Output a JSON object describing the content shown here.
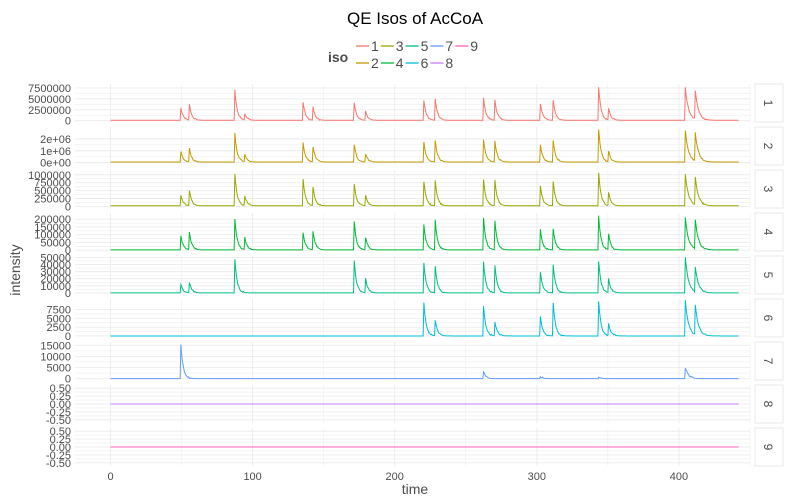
{
  "chart_data": {
    "type": "line",
    "title": "QE Isos of AcCoA",
    "xlabel": "time",
    "ylabel": "intensity",
    "xlim": [
      -25,
      450
    ],
    "x_ticks": [
      0,
      100,
      200,
      300,
      400
    ],
    "grid": true,
    "legend": {
      "title": "iso",
      "placement": "top",
      "entries": [
        {
          "label": "1",
          "color": "#F8766D"
        },
        {
          "label": "2",
          "color": "#C49A00"
        },
        {
          "label": "3",
          "color": "#99A800"
        },
        {
          "label": "4",
          "color": "#00BA38"
        },
        {
          "label": "5",
          "color": "#00BF7D"
        },
        {
          "label": "6",
          "color": "#00BCD8"
        },
        {
          "label": "7",
          "color": "#619CFF"
        },
        {
          "label": "8",
          "color": "#C77CFF"
        },
        {
          "label": "9",
          "color": "#FF61C3"
        }
      ]
    },
    "peak_times": [
      50,
      56,
      88,
      95,
      136,
      143,
      172,
      180,
      221,
      229,
      263,
      271,
      303,
      312,
      344,
      351,
      405,
      412
    ],
    "series": [
      {
        "name": "1",
        "strip": "1",
        "color": "#F8766D",
        "ylim": [
          -300000,
          8400000
        ],
        "y_tick_values": [
          0,
          2500000,
          5000000,
          7500000
        ],
        "y_tick_labels": [
          "0",
          "2500000",
          "5000000",
          "7500000"
        ],
        "baseline": 100000,
        "peaks": [
          [
            50,
            2800000
          ],
          [
            56,
            3500000
          ],
          [
            88,
            6900000
          ],
          [
            95,
            1500000
          ],
          [
            136,
            4200000
          ],
          [
            143,
            3000000
          ],
          [
            172,
            4100000
          ],
          [
            180,
            2000000
          ],
          [
            221,
            4600000
          ],
          [
            229,
            4800000
          ],
          [
            263,
            5100000
          ],
          [
            271,
            4700000
          ],
          [
            303,
            3900000
          ],
          [
            312,
            4700000
          ],
          [
            344,
            7700000
          ],
          [
            351,
            2800000
          ],
          [
            405,
            7500000
          ],
          [
            412,
            6500000
          ]
        ]
      },
      {
        "name": "2",
        "strip": "2",
        "color": "#C49A00",
        "ylim": [
          -200000,
          3000000
        ],
        "y_tick_values": [
          0,
          1000000,
          2000000
        ],
        "y_tick_labels": [
          "0e+00",
          "1e+06",
          "2e+06"
        ],
        "baseline": 50000,
        "peaks": [
          [
            50,
            900000
          ],
          [
            56,
            1100000
          ],
          [
            88,
            2400000
          ],
          [
            95,
            600000
          ],
          [
            136,
            1600000
          ],
          [
            143,
            1300000
          ],
          [
            172,
            1500000
          ],
          [
            180,
            700000
          ],
          [
            221,
            1700000
          ],
          [
            229,
            1800000
          ],
          [
            263,
            1900000
          ],
          [
            271,
            1800000
          ],
          [
            303,
            1400000
          ],
          [
            312,
            1800000
          ],
          [
            344,
            2800000
          ],
          [
            351,
            900000
          ],
          [
            405,
            2700000
          ],
          [
            412,
            2400000
          ]
        ]
      },
      {
        "name": "3",
        "strip": "3",
        "color": "#99A800",
        "ylim": [
          -50000,
          1150000
        ],
        "y_tick_values": [
          0,
          250000,
          500000,
          750000,
          1000000
        ],
        "y_tick_labels": [
          "0",
          "250000",
          "500000",
          "750000",
          "1000000"
        ],
        "baseline": 20000,
        "peaks": [
          [
            50,
            350000
          ],
          [
            56,
            480000
          ],
          [
            88,
            1000000
          ],
          [
            95,
            300000
          ],
          [
            136,
            850000
          ],
          [
            143,
            600000
          ],
          [
            172,
            700000
          ],
          [
            180,
            320000
          ],
          [
            221,
            780000
          ],
          [
            229,
            800000
          ],
          [
            263,
            850000
          ],
          [
            271,
            800000
          ],
          [
            303,
            650000
          ],
          [
            312,
            780000
          ],
          [
            344,
            1050000
          ],
          [
            351,
            420000
          ],
          [
            405,
            1000000
          ],
          [
            412,
            850000
          ]
        ]
      },
      {
        "name": "4",
        "strip": "4",
        "color": "#00BA38",
        "ylim": [
          -5000,
          240000
        ],
        "y_tick_values": [
          0,
          50000,
          100000,
          150000,
          200000
        ],
        "y_tick_labels": [
          "0",
          "50000",
          "100000",
          "150000",
          "200000"
        ],
        "baseline": 2000,
        "peaks": [
          [
            50,
            90000
          ],
          [
            56,
            110000
          ],
          [
            88,
            200000
          ],
          [
            95,
            80000
          ],
          [
            136,
            110000
          ],
          [
            143,
            120000
          ],
          [
            172,
            180000
          ],
          [
            180,
            80000
          ],
          [
            221,
            160000
          ],
          [
            229,
            190000
          ],
          [
            263,
            210000
          ],
          [
            271,
            190000
          ],
          [
            303,
            130000
          ],
          [
            312,
            140000
          ],
          [
            344,
            220000
          ],
          [
            351,
            100000
          ],
          [
            405,
            210000
          ],
          [
            412,
            190000
          ]
        ]
      },
      {
        "name": "5",
        "strip": "5",
        "color": "#00BF7D",
        "ylim": [
          -1500,
          52000
        ],
        "y_tick_values": [
          0,
          10000,
          20000,
          30000,
          40000,
          50000
        ],
        "y_tick_labels": [
          "0",
          "10000",
          "20000",
          "30000",
          "40000",
          "50000"
        ],
        "baseline": 0,
        "peaks": [
          [
            50,
            12000
          ],
          [
            56,
            15000
          ],
          [
            88,
            48000
          ],
          [
            172,
            45000
          ],
          [
            180,
            20000
          ],
          [
            221,
            43000
          ],
          [
            229,
            38000
          ],
          [
            263,
            44000
          ],
          [
            271,
            38000
          ],
          [
            303,
            30000
          ],
          [
            312,
            40000
          ],
          [
            344,
            45000
          ],
          [
            351,
            20000
          ],
          [
            405,
            50000
          ],
          [
            412,
            35000
          ]
        ]
      },
      {
        "name": "6",
        "strip": "6",
        "color": "#00BCD8",
        "ylim": [
          -300,
          10500
        ],
        "y_tick_values": [
          0,
          2500,
          5000,
          7500
        ],
        "y_tick_labels": [
          "0",
          "2500",
          "5000",
          "7500"
        ],
        "baseline": 0,
        "peaks": [
          [
            221,
            9500
          ],
          [
            229,
            4500
          ],
          [
            263,
            8500
          ],
          [
            271,
            4000
          ],
          [
            303,
            5500
          ],
          [
            312,
            9500
          ],
          [
            344,
            10000
          ],
          [
            351,
            3500
          ],
          [
            405,
            10000
          ],
          [
            412,
            8500
          ]
        ]
      },
      {
        "name": "7",
        "strip": "7",
        "color": "#619CFF",
        "ylim": [
          -600,
          16500
        ],
        "y_tick_values": [
          0,
          5000,
          10000,
          15000
        ],
        "y_tick_labels": [
          "0",
          "5000",
          "10000",
          "15000"
        ],
        "baseline": 0,
        "peaks": [
          [
            50,
            15500
          ],
          [
            263,
            3000
          ],
          [
            303,
            1000
          ],
          [
            344,
            800
          ],
          [
            405,
            5000
          ]
        ]
      },
      {
        "name": "8",
        "strip": "8",
        "color": "#C77CFF",
        "ylim": [
          -0.6,
          0.6
        ],
        "y_tick_values": [
          -0.5,
          -0.25,
          0,
          0.25,
          0.5
        ],
        "y_tick_labels": [
          "-0.50",
          "-0.25",
          "0.00",
          "0.25",
          "0.50"
        ],
        "baseline": 0,
        "peaks": []
      },
      {
        "name": "9",
        "strip": "9",
        "color": "#FF61C3",
        "ylim": [
          -0.6,
          0.6
        ],
        "y_tick_values": [
          -0.5,
          -0.25,
          0,
          0.25,
          0.5
        ],
        "y_tick_labels": [
          "-0.50",
          "-0.25",
          "0.00",
          "0.25",
          "0.50"
        ],
        "baseline": 0,
        "peaks": []
      }
    ]
  }
}
